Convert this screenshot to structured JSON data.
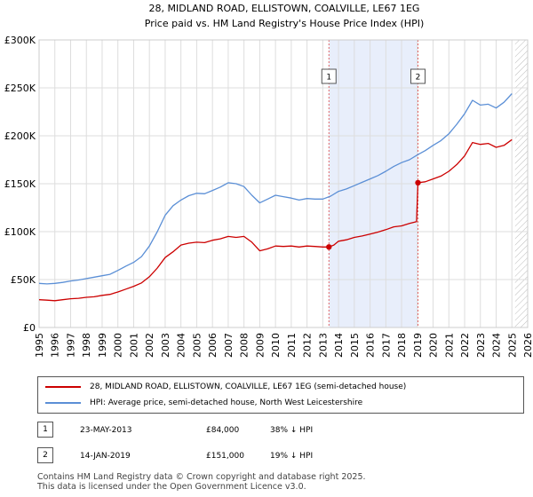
{
  "title": {
    "line1": "28, MIDLAND ROAD, ELLISTOWN, COALVILLE, LE67 1EG",
    "line2": "Price paid vs. HM Land Registry's House Price Index (HPI)"
  },
  "colors": {
    "property": "#cc0000",
    "hpi": "#5b8fd6",
    "shade": "#e8eefb",
    "grid": "#dddddd",
    "marker_line": "#e06666"
  },
  "legend": {
    "property_label": "28, MIDLAND ROAD, ELLISTOWN, COALVILLE, LE67 1EG (semi-detached house)",
    "hpi_label": "HPI: Average price, semi-detached house, North West Leicestershire"
  },
  "sales": [
    {
      "number": "1",
      "date": "23-MAY-2013",
      "price": "£84,000",
      "hpi_diff": "38% ↓ HPI"
    },
    {
      "number": "2",
      "date": "14-JAN-2019",
      "price": "£151,000",
      "hpi_diff": "19% ↓ HPI"
    }
  ],
  "footer": {
    "line1": "Contains HM Land Registry data © Crown copyright and database right 2025.",
    "line2": "This data is licensed under the Open Government Licence v3.0."
  },
  "chart_data": {
    "type": "line",
    "title": "28, MIDLAND ROAD, ELLISTOWN, COALVILLE, LE67 1EG",
    "subtitle": "Price paid vs. HM Land Registry's House Price Index (HPI)",
    "xlabel": "",
    "ylabel": "",
    "xlim": [
      1995,
      2026
    ],
    "ylim": [
      0,
      300000
    ],
    "x_ticks": [
      1995,
      1996,
      1997,
      1998,
      1999,
      2000,
      2001,
      2002,
      2003,
      2004,
      2005,
      2006,
      2007,
      2008,
      2009,
      2010,
      2011,
      2012,
      2013,
      2014,
      2015,
      2016,
      2017,
      2018,
      2019,
      2020,
      2021,
      2022,
      2023,
      2024,
      2025,
      2026
    ],
    "y_ticks": [
      {
        "value": 0,
        "label": "£0"
      },
      {
        "value": 50000,
        "label": "£50K"
      },
      {
        "value": 100000,
        "label": "£100K"
      },
      {
        "value": 150000,
        "label": "£150K"
      },
      {
        "value": 200000,
        "label": "£200K"
      },
      {
        "value": 250000,
        "label": "£250K"
      },
      {
        "value": 300000,
        "label": "£300K"
      }
    ],
    "grid": true,
    "legend_position": "below",
    "shaded_range": [
      2013.39,
      2019.04
    ],
    "future_hatch_from": 2025.2,
    "markers": [
      {
        "label": "1",
        "x": 2013.39,
        "y": 84000
      },
      {
        "label": "2",
        "x": 2019.04,
        "y": 151000
      }
    ],
    "series": [
      {
        "name": "28, MIDLAND ROAD, ELLISTOWN, COALVILLE, LE67 1EG (semi-detached house)",
        "color": "#cc0000",
        "x": [
          1995,
          1995.5,
          1996,
          1996.5,
          1997,
          1997.5,
          1998,
          1998.5,
          1999,
          1999.5,
          2000,
          2000.5,
          2001,
          2001.5,
          2002,
          2002.5,
          2003,
          2003.5,
          2004,
          2004.5,
          2005,
          2005.5,
          2006,
          2006.5,
          2007,
          2007.5,
          2008,
          2008.5,
          2009,
          2009.5,
          2010,
          2010.5,
          2011,
          2011.5,
          2012,
          2012.5,
          2013,
          2013.39,
          2013.7,
          2014,
          2014.5,
          2015,
          2015.5,
          2016,
          2016.5,
          2017,
          2017.5,
          2018,
          2018.5,
          2018.95,
          2019.04,
          2019.5,
          2020,
          2020.5,
          2021,
          2021.5,
          2022,
          2022.5,
          2023,
          2023.5,
          2024,
          2024.5,
          2025
        ],
        "y": [
          29000,
          28500,
          28000,
          29000,
          30000,
          30500,
          31500,
          32000,
          33500,
          34500,
          37000,
          40000,
          43000,
          46500,
          53000,
          62000,
          73000,
          79000,
          86000,
          88000,
          89000,
          88500,
          91000,
          92500,
          95000,
          94000,
          95000,
          89000,
          80000,
          82000,
          85000,
          84500,
          85000,
          84000,
          85000,
          84500,
          84000,
          84000,
          86000,
          90000,
          91500,
          94000,
          95500,
          97500,
          99500,
          102000,
          105000,
          106000,
          108500,
          110500,
          151000,
          152000,
          155000,
          158000,
          163000,
          170000,
          179000,
          193000,
          191000,
          192000,
          188000,
          190000,
          196000
        ]
      },
      {
        "name": "HPI: Average price, semi-detached house, North West Leicestershire",
        "color": "#5b8fd6",
        "x": [
          1995,
          1995.5,
          1996,
          1996.5,
          1997,
          1997.5,
          1998,
          1998.5,
          1999,
          1999.5,
          2000,
          2000.5,
          2001,
          2001.5,
          2002,
          2002.5,
          2003,
          2003.5,
          2004,
          2004.5,
          2005,
          2005.5,
          2006,
          2006.5,
          2007,
          2007.5,
          2008,
          2008.5,
          2009,
          2009.5,
          2010,
          2010.5,
          2011,
          2011.5,
          2012,
          2012.5,
          2013,
          2013.5,
          2014,
          2014.5,
          2015,
          2015.5,
          2016,
          2016.5,
          2017,
          2017.5,
          2018,
          2018.5,
          2019,
          2019.5,
          2020,
          2020.5,
          2021,
          2021.5,
          2022,
          2022.5,
          2023,
          2023.5,
          2024,
          2024.5,
          2025
        ],
        "y": [
          46000,
          45500,
          46000,
          47000,
          48500,
          49500,
          51000,
          52500,
          54000,
          55500,
          59500,
          64000,
          68000,
          74000,
          85000,
          100000,
          117000,
          127000,
          133000,
          137500,
          140000,
          139500,
          143000,
          146500,
          151000,
          150000,
          147000,
          138000,
          130000,
          134000,
          138000,
          136500,
          135000,
          133000,
          134500,
          134000,
          134000,
          137000,
          142000,
          144500,
          148000,
          151500,
          155000,
          158500,
          163000,
          168000,
          172000,
          175000,
          180000,
          184500,
          190000,
          195000,
          202000,
          212000,
          223000,
          237000,
          232000,
          233000,
          229000,
          235000,
          244000
        ]
      }
    ]
  }
}
